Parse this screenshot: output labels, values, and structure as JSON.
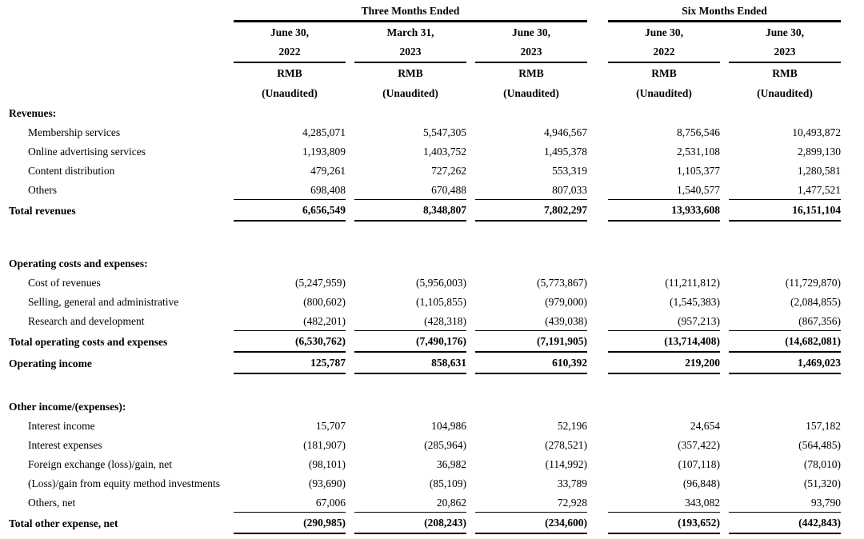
{
  "colors": {
    "text": "#000000",
    "background": "#ffffff",
    "rule": "#000000"
  },
  "header": {
    "groups": [
      {
        "label": "Three Months Ended"
      },
      {
        "label": "Six Months Ended"
      }
    ],
    "columns": [
      {
        "date": "June 30,",
        "year": "2022",
        "currency": "RMB",
        "audit": "(Unaudited)"
      },
      {
        "date": "March 31,",
        "year": "2023",
        "currency": "RMB",
        "audit": "(Unaudited)"
      },
      {
        "date": "June 30,",
        "year": "2023",
        "currency": "RMB",
        "audit": "(Unaudited)"
      },
      {
        "date": "June 30,",
        "year": "2022",
        "currency": "RMB",
        "audit": "(Unaudited)"
      },
      {
        "date": "June 30,",
        "year": "2023",
        "currency": "RMB",
        "audit": "(Unaudited)"
      }
    ]
  },
  "sections": [
    {
      "header": "Revenues:",
      "rows": [
        {
          "label": "Membership services",
          "values": [
            "4,285,071",
            "5,547,305",
            "4,946,567",
            "8,756,546",
            "10,493,872"
          ]
        },
        {
          "label": "Online advertising services",
          "values": [
            "1,193,809",
            "1,403,752",
            "1,495,378",
            "2,531,108",
            "2,899,130"
          ]
        },
        {
          "label": "Content distribution",
          "values": [
            "479,261",
            "727,262",
            "553,319",
            "1,105,377",
            "1,280,581"
          ]
        },
        {
          "label": "Others",
          "values": [
            "698,408",
            "670,488",
            "807,033",
            "1,540,577",
            "1,477,521"
          ]
        },
        {
          "label": "Total revenues",
          "values": [
            "6,656,549",
            "8,348,807",
            "7,802,297",
            "13,933,608",
            "16,151,104"
          ]
        }
      ]
    },
    {
      "header": "Operating costs and expenses:",
      "rows": [
        {
          "label": "Cost of revenues",
          "values": [
            "(5,247,959)",
            "(5,956,003)",
            "(5,773,867)",
            "(11,211,812)",
            "(11,729,870)"
          ]
        },
        {
          "label": "Selling, general and administrative",
          "values": [
            "(800,602)",
            "(1,105,855)",
            "(979,000)",
            "(1,545,383)",
            "(2,084,855)"
          ]
        },
        {
          "label": "Research and development",
          "values": [
            "(482,201)",
            "(428,318)",
            "(439,038)",
            "(957,213)",
            "(867,356)"
          ]
        },
        {
          "label": "Total operating costs and expenses",
          "values": [
            "(6,530,762)",
            "(7,490,176)",
            "(7,191,905)",
            "(13,714,408)",
            "(14,682,081)"
          ]
        },
        {
          "label": "Operating income",
          "values": [
            "125,787",
            "858,631",
            "610,392",
            "219,200",
            "1,469,023"
          ]
        }
      ]
    },
    {
      "header": "Other income/(expenses):",
      "rows": [
        {
          "label": "Interest income",
          "values": [
            "15,707",
            "104,986",
            "52,196",
            "24,654",
            "157,182"
          ]
        },
        {
          "label": "Interest expenses",
          "values": [
            "(181,907)",
            "(285,964)",
            "(278,521)",
            "(357,422)",
            "(564,485)"
          ]
        },
        {
          "label": "Foreign exchange (loss)/gain, net",
          "values": [
            "(98,101)",
            "36,982",
            "(114,992)",
            "(107,118)",
            "(78,010)"
          ]
        },
        {
          "label": "(Loss)/gain from equity method investments",
          "values": [
            "(93,690)",
            "(85,109)",
            "33,789",
            "(96,848)",
            "(51,320)"
          ]
        },
        {
          "label": "Others, net",
          "values": [
            "67,006",
            "20,862",
            "72,928",
            "343,082",
            "93,790"
          ]
        },
        {
          "label": "Total other expense, net",
          "values": [
            "(290,985)",
            "(208,243)",
            "(234,600)",
            "(193,652)",
            "(442,843)"
          ]
        }
      ]
    }
  ]
}
